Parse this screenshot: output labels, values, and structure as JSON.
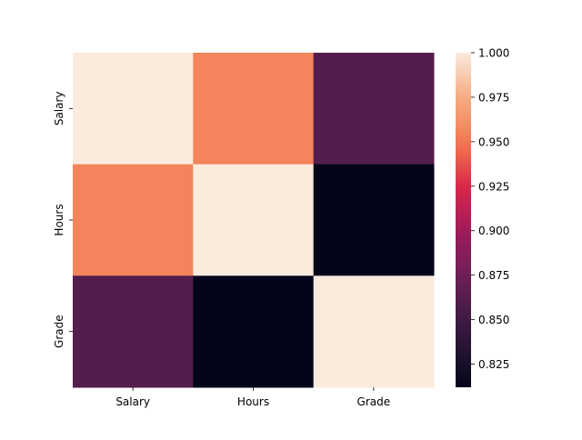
{
  "chart_data": {
    "type": "heatmap",
    "title": "",
    "xlabel": "",
    "ylabel": "",
    "x_categories": [
      "Salary",
      "Hours",
      "Grade"
    ],
    "y_categories": [
      "Salary",
      "Hours",
      "Grade"
    ],
    "values": [
      [
        1.0,
        0.955,
        0.862
      ],
      [
        0.955,
        1.0,
        0.812
      ],
      [
        0.862,
        0.812,
        1.0
      ]
    ],
    "colormap": "rocket",
    "colorbar": {
      "range": [
        0.812,
        1.0
      ],
      "ticks": [
        0.825,
        0.85,
        0.875,
        0.9,
        0.925,
        0.95,
        0.975,
        1.0
      ],
      "tick_labels": [
        "0.825",
        "0.850",
        "0.875",
        "0.900",
        "0.925",
        "0.950",
        "0.975",
        "1.000"
      ]
    }
  }
}
